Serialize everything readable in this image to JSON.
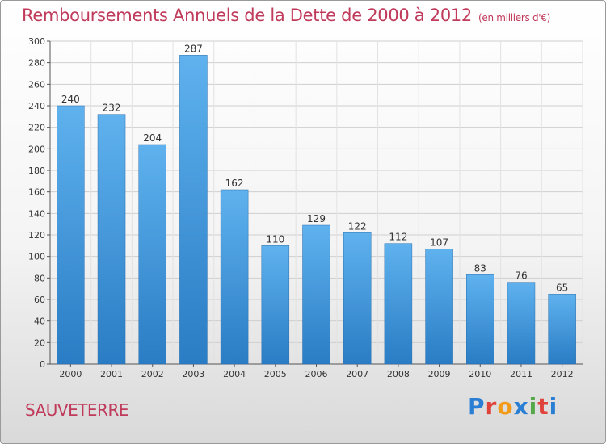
{
  "chart_data": {
    "type": "bar",
    "title": "Remboursements Annuels de la Dette de 2000 à 2012",
    "unit": "(en milliers d'€)",
    "categories": [
      "2000",
      "2001",
      "2002",
      "2003",
      "2004",
      "2005",
      "2006",
      "2007",
      "2008",
      "2009",
      "2010",
      "2011",
      "2012"
    ],
    "values": [
      240,
      232,
      204,
      287,
      162,
      110,
      129,
      122,
      112,
      107,
      83,
      76,
      65
    ],
    "ylim": [
      0,
      300
    ],
    "yticks": [
      0,
      20,
      40,
      60,
      80,
      100,
      120,
      140,
      160,
      180,
      200,
      220,
      240,
      260,
      280,
      300
    ],
    "grid": true,
    "bar_color": "#3a8fd8"
  },
  "commune": "SAUVETERRE",
  "logo": {
    "letters": [
      "P",
      "r",
      "o",
      "x",
      "i",
      "t",
      "i"
    ],
    "colors": [
      "#2a7fd4",
      "#e0433b",
      "#f29a1a",
      "#2a7fd4",
      "#55a84a",
      "#e0433b",
      "#2a7fd4"
    ]
  }
}
